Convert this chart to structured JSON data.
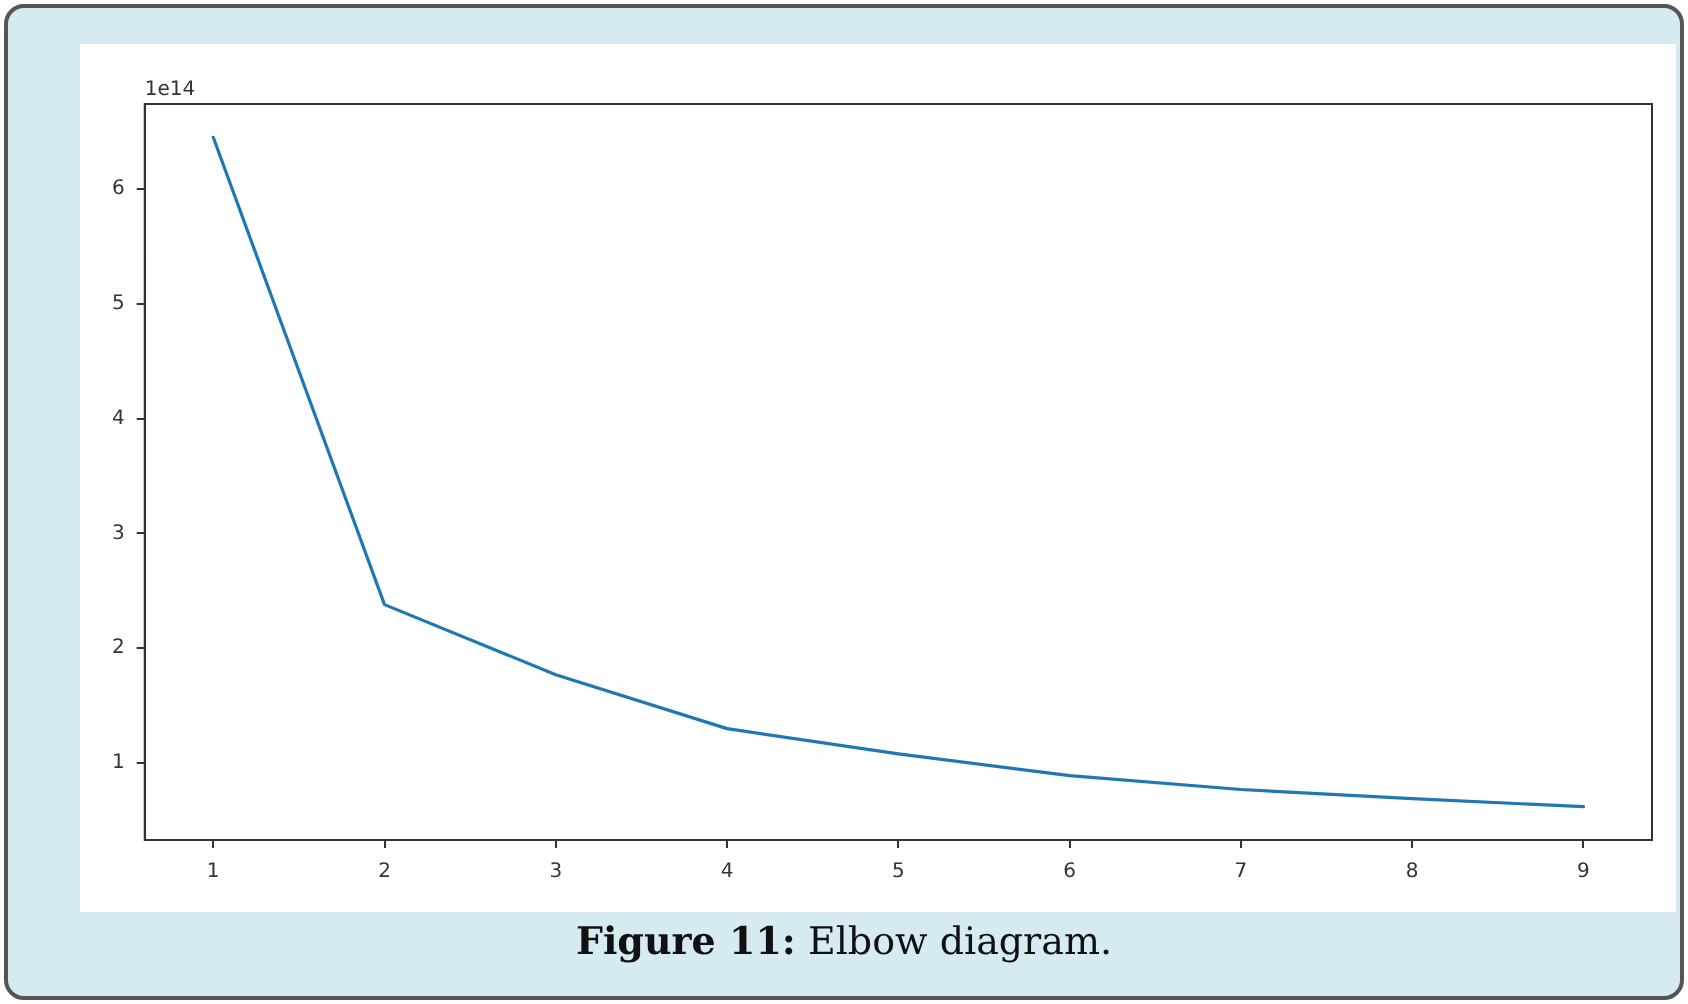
{
  "chart_data": {
    "type": "line",
    "title": "Figure 11: Elbow diagram.",
    "annotations": [
      "1e14"
    ],
    "x": [
      1,
      2,
      3,
      4,
      5,
      6,
      7,
      8,
      9
    ],
    "series": [
      {
        "color": "#1f77b4",
        "values": [
          6.45,
          2.38,
          1.77,
          1.3,
          1.08,
          0.89,
          0.77,
          0.69,
          0.62
        ]
      }
    ],
    "xlim": [
      0.6,
      9.4
    ],
    "xticks": [
      1,
      2,
      3,
      4,
      5,
      6,
      7,
      8,
      9
    ],
    "ylim": [
      0.33,
      6.74
    ],
    "yticks": [
      1,
      2,
      3,
      4,
      5,
      6
    ],
    "grid": false,
    "legend": false,
    "marker": "none",
    "line_style": "solid"
  }
}
